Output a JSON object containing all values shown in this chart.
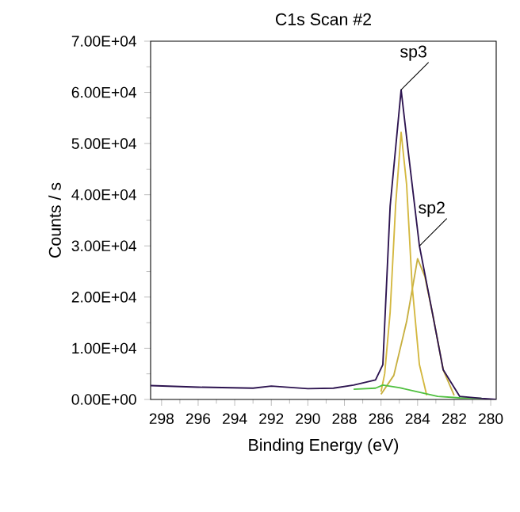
{
  "chart_data": {
    "type": "line",
    "title": "C1s Scan #2",
    "xlabel": "Binding Energy (eV)",
    "ylabel": "Counts / s",
    "xlim": [
      298.6,
      279.7
    ],
    "ylim": [
      0,
      70000
    ],
    "xticks": [
      298,
      296,
      294,
      292,
      290,
      288,
      286,
      284,
      282,
      280
    ],
    "yticks": [
      {
        "value": 0,
        "label": "0.00E+00"
      },
      {
        "value": 10000,
        "label": "1.00E+04"
      },
      {
        "value": 20000,
        "label": "2.00E+04"
      },
      {
        "value": 30000,
        "label": "3.00E+04"
      },
      {
        "value": 40000,
        "label": "4.00E+04"
      },
      {
        "value": 50000,
        "label": "5.00E+04"
      },
      {
        "value": 60000,
        "label": "6.00E+04"
      },
      {
        "value": 70000,
        "label": "7.00E+04"
      }
    ],
    "grid": false,
    "marker": "none",
    "line_style": "solid",
    "series": [
      {
        "color": "#c8b040",
        "x": [
          286.0,
          285.3,
          284.6,
          284.0,
          283.6,
          283.2,
          282.6,
          282.0
        ],
        "values": [
          1000,
          4700,
          15200,
          27500,
          24000,
          17100,
          5800,
          800
        ]
      },
      {
        "color": "#d4b840",
        "x": [
          286.0,
          285.8,
          285.5,
          285.2,
          284.9,
          284.6,
          284.3,
          283.9,
          283.5
        ],
        "values": [
          1500,
          5000,
          17100,
          38000,
          52200,
          42000,
          22300,
          6800,
          800
        ]
      },
      {
        "color": "#50c040",
        "x": [
          287.5,
          286.3,
          285.9,
          285.0,
          284.0,
          282.9,
          281.7,
          280.5
        ],
        "values": [
          2000,
          2200,
          2800,
          2300,
          1500,
          600,
          300,
          200
        ]
      },
      {
        "color": "#2d1450",
        "x": [
          298.6,
          296.0,
          293.0,
          292.0,
          290.0,
          288.6,
          287.5,
          286.3,
          285.9,
          285.5,
          284.9,
          284.5,
          283.9,
          283.2,
          282.6,
          281.7,
          280.5,
          279.7
        ],
        "values": [
          2700,
          2400,
          2200,
          2600,
          2100,
          2200,
          2800,
          3800,
          6800,
          37800,
          60500,
          48100,
          30000,
          17100,
          5800,
          600,
          200,
          0
        ]
      }
    ],
    "annotations": [
      {
        "text": "sp3",
        "x": 284.9,
        "y": 60500
      },
      {
        "text": "sp2",
        "x": 283.9,
        "y": 30000
      }
    ]
  }
}
